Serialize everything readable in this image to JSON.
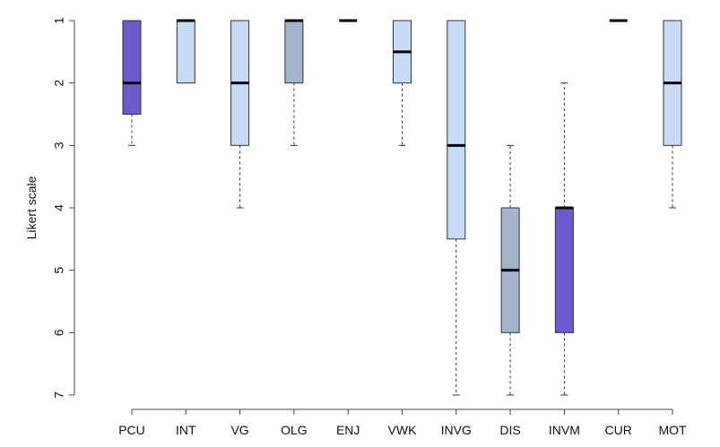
{
  "chart_data": {
    "type": "box",
    "title": "",
    "xlabel": "",
    "ylabel": "Likert scale",
    "ylim": [
      1,
      7
    ],
    "y_reversed": true,
    "y_ticks": [
      "1",
      "2",
      "3",
      "4",
      "5",
      "6",
      "7"
    ],
    "grid": false,
    "categories": [
      "PCU",
      "INT",
      "VG",
      "OLG",
      "ENJ",
      "VWK",
      "INVG",
      "DIS",
      "INVM",
      "CUR",
      "MOT"
    ],
    "boxes": [
      {
        "category": "PCU",
        "whisker_low": 1,
        "q1": 1,
        "median": 2,
        "q3": 2.5,
        "whisker_high": 3,
        "color": "#6a5acd"
      },
      {
        "category": "INT",
        "whisker_low": 1,
        "q1": 1,
        "median": 1,
        "q3": 2,
        "whisker_high": 2,
        "color": "#c6dcf5"
      },
      {
        "category": "VG",
        "whisker_low": 1,
        "q1": 1,
        "median": 2,
        "q3": 3,
        "whisker_high": 4,
        "color": "#c6dcf5"
      },
      {
        "category": "OLG",
        "whisker_low": 1,
        "q1": 1,
        "median": 1,
        "q3": 2,
        "whisker_high": 3,
        "color": "#a3b4cc"
      },
      {
        "category": "ENJ",
        "whisker_low": 1,
        "q1": 1,
        "median": 1,
        "q3": 1,
        "whisker_high": 1,
        "color": "#c6dcf5"
      },
      {
        "category": "VWK",
        "whisker_low": 1,
        "q1": 1,
        "median": 1.5,
        "q3": 2,
        "whisker_high": 3,
        "color": "#c6dcf5"
      },
      {
        "category": "INVG",
        "whisker_low": 1,
        "q1": 1,
        "median": 3,
        "q3": 4.5,
        "whisker_high": 7,
        "color": "#c6dcf5"
      },
      {
        "category": "DIS",
        "whisker_low": 3,
        "q1": 4,
        "median": 5,
        "q3": 6,
        "whisker_high": 7,
        "color": "#a3b4cc"
      },
      {
        "category": "INVM",
        "whisker_low": 2,
        "q1": 4,
        "median": 4,
        "q3": 6,
        "whisker_high": 7,
        "color": "#6a5acd"
      },
      {
        "category": "CUR",
        "whisker_low": 1,
        "q1": 1,
        "median": 1,
        "q3": 1,
        "whisker_high": 1,
        "color": "#c6dcf5"
      },
      {
        "category": "MOT",
        "whisker_low": 1,
        "q1": 1,
        "median": 2,
        "q3": 3,
        "whisker_high": 4,
        "color": "#c6dcf5"
      }
    ]
  }
}
